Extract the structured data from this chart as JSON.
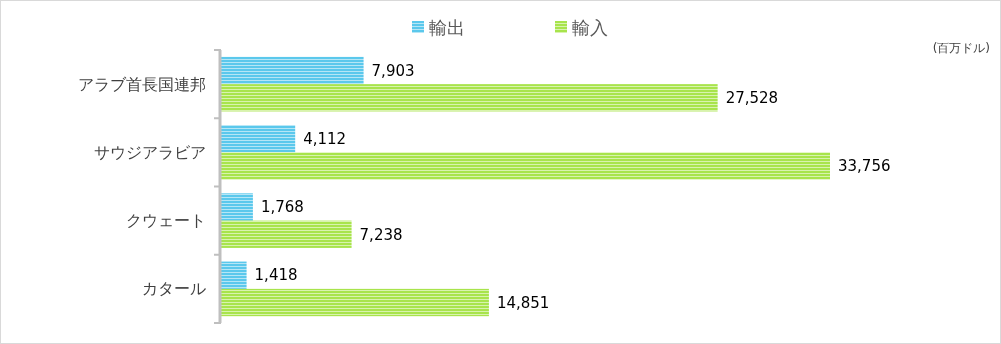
{
  "chart_data": {
    "type": "bar",
    "orientation": "horizontal",
    "categories": [
      "アラブ首長国連邦",
      "サウジアラビア",
      "クウェート",
      "カタール"
    ],
    "series": [
      {
        "name": "輸出",
        "color": "#5bc8ec",
        "values": [
          7903,
          4112,
          1768,
          1418
        ],
        "value_labels": [
          "7,903",
          "4,112",
          "1,768",
          "1,418"
        ]
      },
      {
        "name": "輸入",
        "color": "#a8e44c",
        "values": [
          27528,
          33756,
          7238,
          14851
        ],
        "value_labels": [
          "27,528",
          "33,756",
          "7,238",
          "14,851"
        ]
      }
    ],
    "legend": "top",
    "annotations": [
      "(百万ドル)"
    ]
  }
}
